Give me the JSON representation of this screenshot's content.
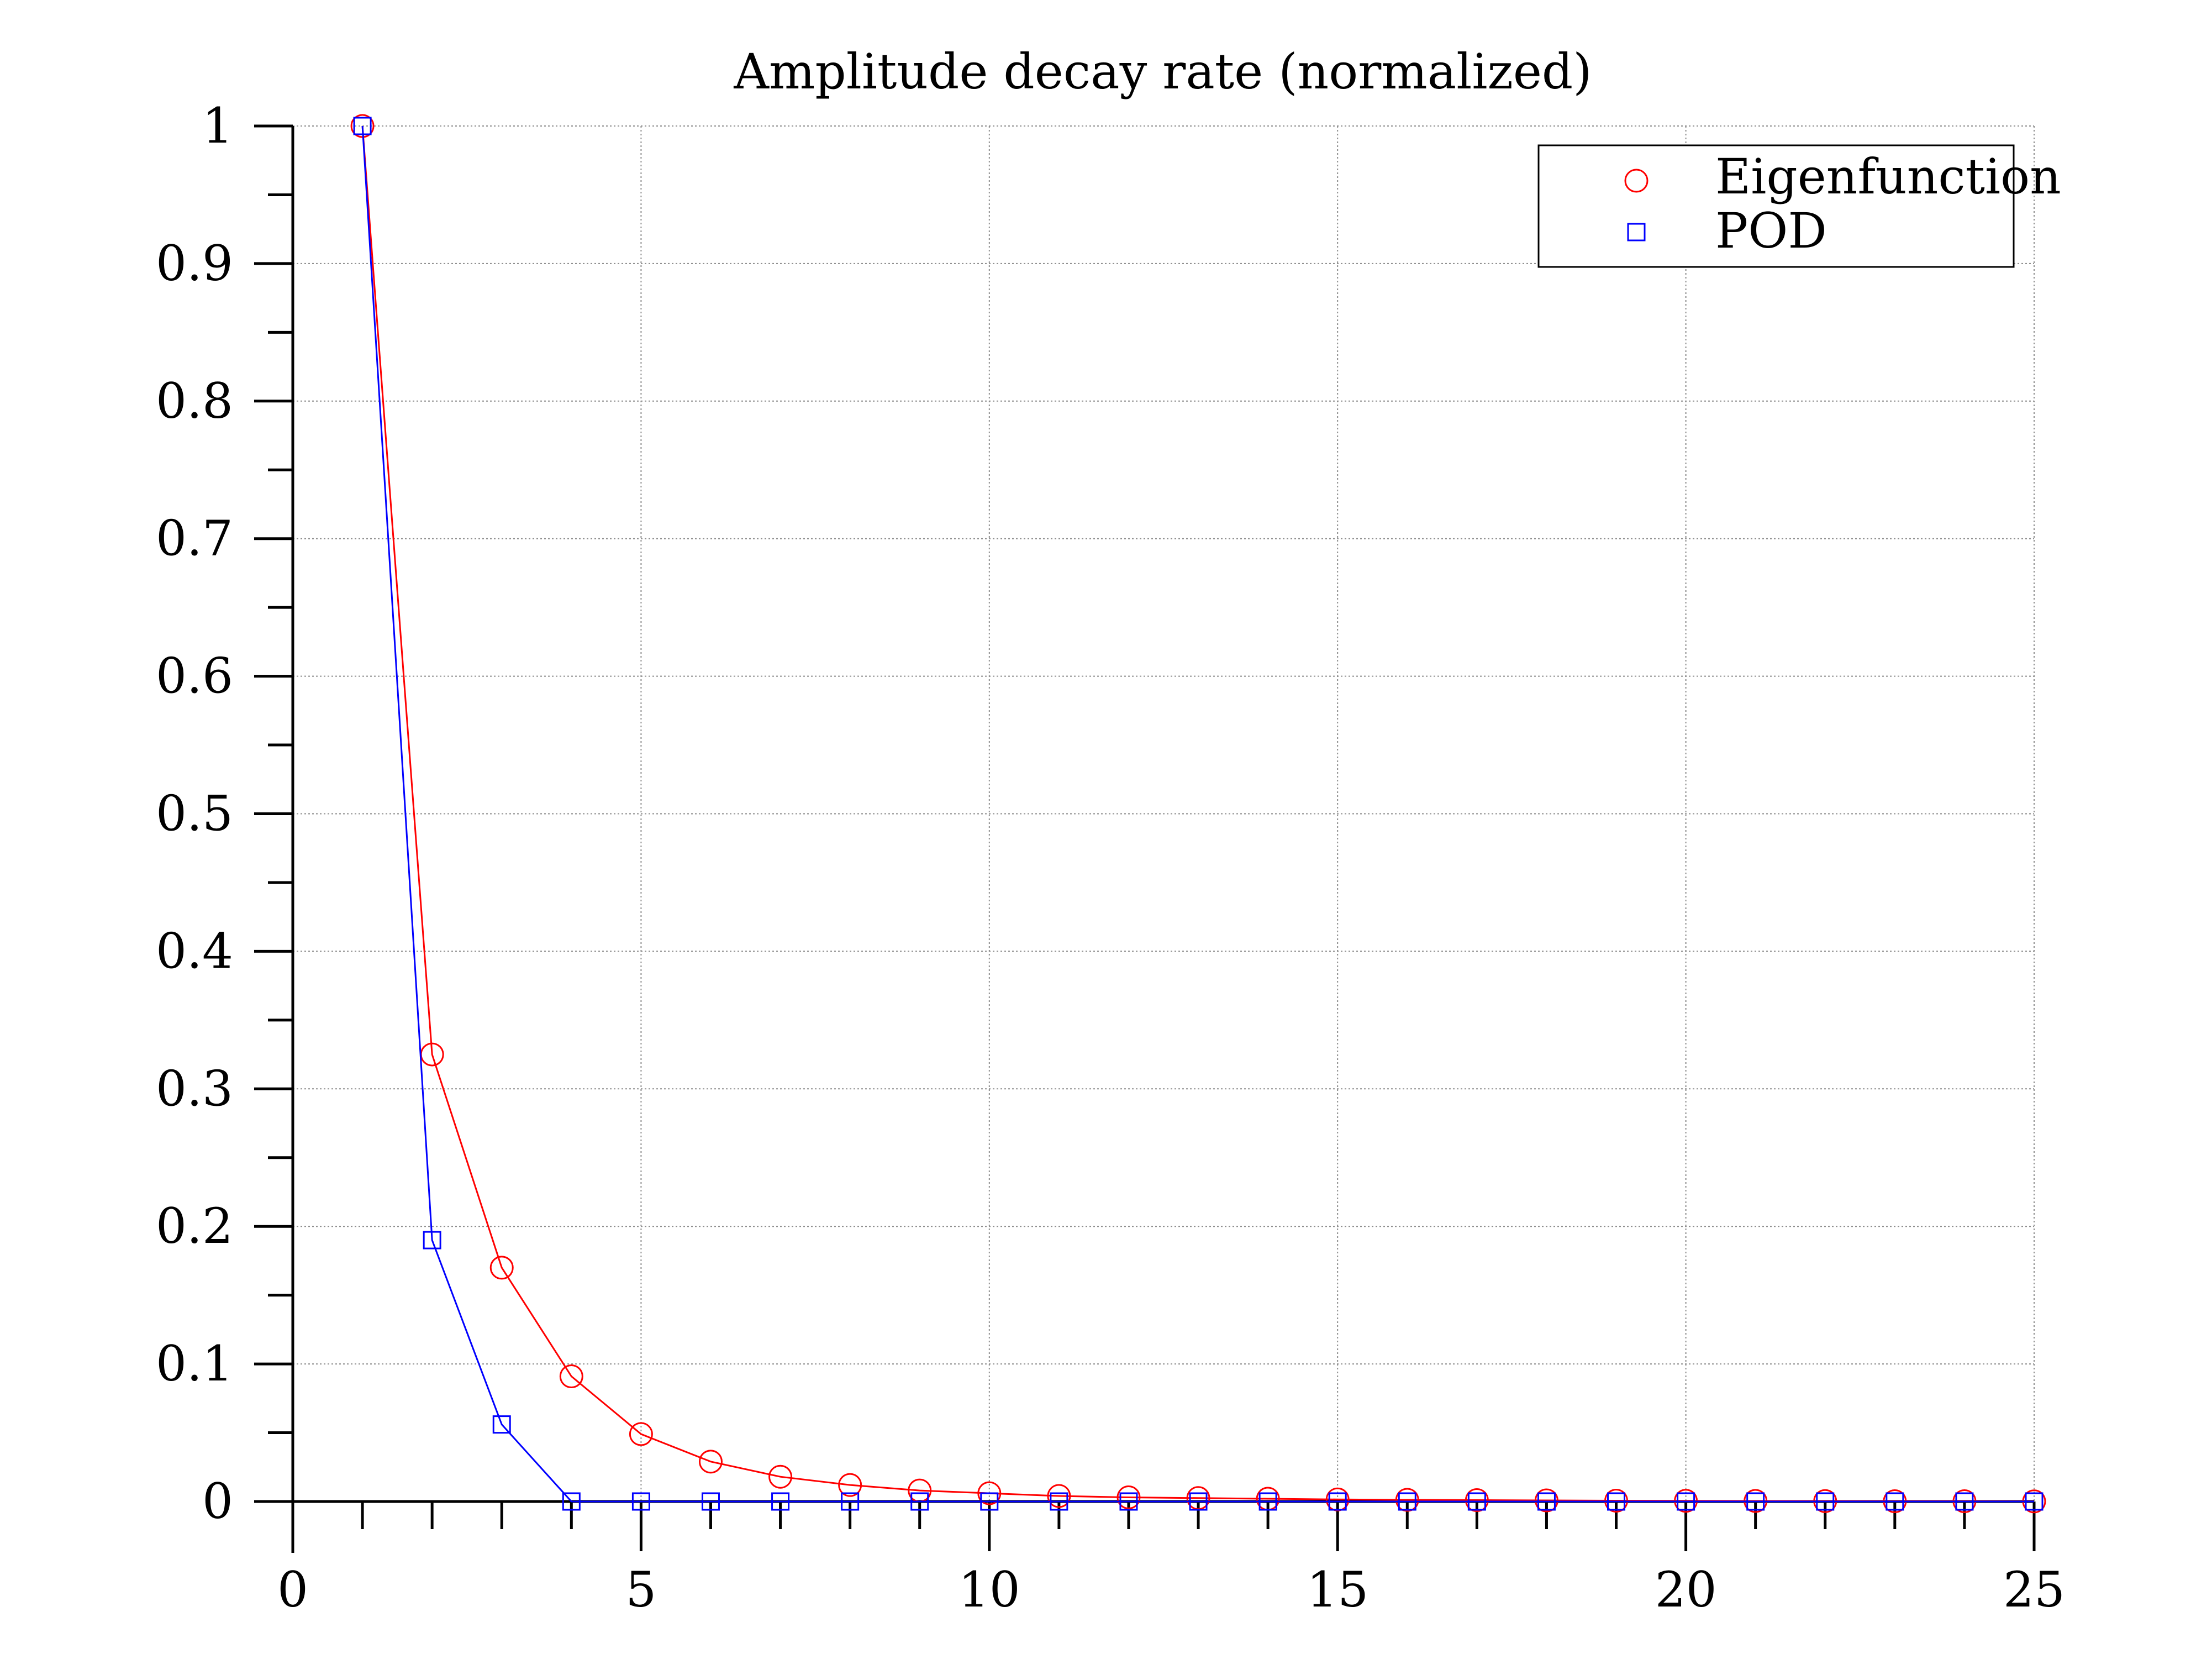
{
  "chart_data": {
    "type": "line",
    "title": "Amplitude decay rate (normalized)",
    "xlabel": "",
    "ylabel": "",
    "xlim": [
      0,
      25
    ],
    "ylim": [
      0,
      1
    ],
    "xticks": [
      0,
      5,
      10,
      15,
      20,
      25
    ],
    "yticks": [
      0,
      0.1,
      0.2,
      0.3,
      0.4,
      0.5,
      0.6,
      0.7,
      0.8,
      0.9,
      1
    ],
    "xtick_labels": [
      "0",
      "5",
      "10",
      "15",
      "20",
      "25"
    ],
    "ytick_labels": [
      "0",
      "0.1",
      "0.2",
      "0.3",
      "0.4",
      "0.5",
      "0.6",
      "0.7",
      "0.8",
      "0.9",
      "1"
    ],
    "grid": true,
    "legend_position": "top-right",
    "x": [
      1,
      2,
      3,
      4,
      5,
      6,
      7,
      8,
      9,
      10,
      11,
      12,
      13,
      14,
      15,
      16,
      17,
      18,
      19,
      20,
      21,
      22,
      23,
      24,
      25
    ],
    "series": [
      {
        "name": "Eigenfunction",
        "color": "#ff0000",
        "marker": "circle",
        "values": [
          1,
          0.325,
          0.17,
          0.091,
          0.049,
          0.029,
          0.018,
          0.012,
          0.008,
          0.006,
          0.004,
          0.003,
          0.0025,
          0.002,
          0.0015,
          0.0012,
          0.001,
          0.0008,
          0.0006,
          0.0005,
          0.0004,
          0.0003,
          0.0002,
          0.0002,
          0.0001
        ]
      },
      {
        "name": "POD",
        "color": "#0000ff",
        "marker": "square",
        "values": [
          1,
          0.19,
          0.056,
          0,
          0,
          0,
          0,
          0,
          0,
          0,
          0,
          0,
          0,
          0,
          0,
          0,
          0,
          0,
          0,
          0,
          0,
          0,
          0,
          0,
          0
        ]
      }
    ]
  }
}
